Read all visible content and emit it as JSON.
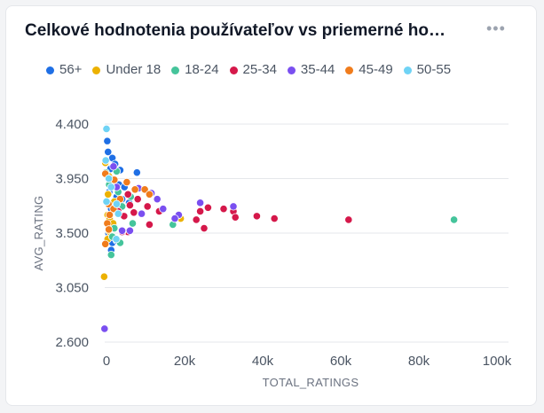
{
  "header": {
    "title": "Celkové hodnotenia používateľov vs priemerné ho…",
    "menu_icon": "more-horizontal-icon"
  },
  "chart_data": {
    "type": "scatter",
    "title": "Celkové hodnotenia používateľov vs priemerné ho…",
    "xlabel": "TOTAL_RATINGS",
    "ylabel": "AVG_RATING",
    "xlim": [
      0,
      100000
    ],
    "ylim": [
      2.6,
      4.4
    ],
    "x_ticks": [
      0,
      20000,
      40000,
      60000,
      80000,
      100000
    ],
    "x_tick_labels": [
      "0",
      "20k",
      "40k",
      "60k",
      "80k",
      "100k"
    ],
    "y_ticks": [
      2.6,
      3.05,
      3.5,
      3.95,
      4.4
    ],
    "y_tick_labels": [
      "2.600",
      "3.050",
      "3.500",
      "3.950",
      "4.400"
    ],
    "grid": true,
    "legend_position": "top",
    "series": [
      {
        "name": "56+",
        "color": "#1f6fe5",
        "points": [
          [
            200,
            4.26
          ],
          [
            400,
            4.17
          ],
          [
            1500,
            4.12
          ],
          [
            2200,
            4.07
          ],
          [
            1000,
            4.03
          ],
          [
            3500,
            4.02
          ],
          [
            7800,
            4.0
          ],
          [
            500,
            3.95
          ],
          [
            1800,
            3.92
          ],
          [
            3200,
            3.9
          ],
          [
            4600,
            3.88
          ],
          [
            700,
            3.84
          ],
          [
            2600,
            3.8
          ],
          [
            4000,
            3.78
          ],
          [
            5800,
            3.75
          ],
          [
            1200,
            3.7
          ],
          [
            3000,
            3.66
          ],
          [
            2000,
            3.55
          ],
          [
            500,
            3.5
          ],
          [
            1400,
            3.47
          ],
          [
            800,
            3.44
          ],
          [
            1500,
            3.42
          ],
          [
            2600,
            3.44
          ],
          [
            1200,
            3.36
          ]
        ]
      },
      {
        "name": "Under 18",
        "color": "#ecb100",
        "points": [
          [
            -300,
            4.08
          ],
          [
            600,
            3.97
          ],
          [
            1200,
            3.9
          ],
          [
            400,
            3.82
          ],
          [
            2000,
            3.76
          ],
          [
            3200,
            3.7
          ],
          [
            300,
            3.65
          ],
          [
            800,
            3.62
          ],
          [
            1700,
            3.58
          ],
          [
            600,
            3.52
          ],
          [
            1000,
            3.47
          ],
          [
            300,
            3.45
          ],
          [
            -600,
            3.14
          ],
          [
            19000,
            3.62
          ]
        ]
      },
      {
        "name": "18-24",
        "color": "#45c49b",
        "points": [
          [
            -200,
            4.0
          ],
          [
            2600,
            4.01
          ],
          [
            700,
            3.9
          ],
          [
            3000,
            3.84
          ],
          [
            6200,
            3.8
          ],
          [
            4000,
            3.72
          ],
          [
            9000,
            3.66
          ],
          [
            6700,
            3.58
          ],
          [
            2000,
            3.54
          ],
          [
            1500,
            3.47
          ],
          [
            3500,
            3.42
          ],
          [
            1200,
            3.32
          ],
          [
            17000,
            3.57
          ],
          [
            89000,
            3.61
          ]
        ]
      },
      {
        "name": "25-34",
        "color": "#d5184a",
        "points": [
          [
            5500,
            3.82
          ],
          [
            8000,
            3.78
          ],
          [
            6000,
            3.73
          ],
          [
            10500,
            3.72
          ],
          [
            13500,
            3.68
          ],
          [
            7000,
            3.67
          ],
          [
            4500,
            3.64
          ],
          [
            3000,
            3.68
          ],
          [
            11000,
            3.57
          ],
          [
            5500,
            3.51
          ],
          [
            4000,
            3.51
          ],
          [
            23000,
            3.61
          ],
          [
            24000,
            3.68
          ],
          [
            26000,
            3.71
          ],
          [
            30000,
            3.7
          ],
          [
            32500,
            3.68
          ],
          [
            33000,
            3.63
          ],
          [
            38500,
            3.64
          ],
          [
            43000,
            3.62
          ],
          [
            62000,
            3.61
          ],
          [
            25000,
            3.54
          ]
        ]
      },
      {
        "name": "35-44",
        "color": "#7a4ff0",
        "points": [
          [
            1800,
            4.05
          ],
          [
            2600,
            3.88
          ],
          [
            8200,
            3.87
          ],
          [
            11500,
            3.83
          ],
          [
            13000,
            3.78
          ],
          [
            24000,
            3.75
          ],
          [
            32500,
            3.72
          ],
          [
            14500,
            3.7
          ],
          [
            9000,
            3.66
          ],
          [
            18500,
            3.65
          ],
          [
            17500,
            3.62
          ],
          [
            6000,
            3.52
          ],
          [
            4000,
            3.52
          ],
          [
            -500,
            2.71
          ]
        ]
      },
      {
        "name": "45-49",
        "color": "#f07c1c",
        "points": [
          [
            -300,
            3.99
          ],
          [
            2000,
            3.94
          ],
          [
            5200,
            3.92
          ],
          [
            7300,
            3.86
          ],
          [
            9800,
            3.86
          ],
          [
            11000,
            3.82
          ],
          [
            3500,
            3.78
          ],
          [
            500,
            3.74
          ],
          [
            1800,
            3.7
          ],
          [
            800,
            3.65
          ],
          [
            200,
            3.58
          ],
          [
            -300,
            3.41
          ],
          [
            600,
            3.53
          ]
        ]
      },
      {
        "name": "50-55",
        "color": "#6fd3f5",
        "points": [
          [
            0,
            4.36
          ],
          [
            -200,
            4.1
          ],
          [
            600,
            3.95
          ],
          [
            1200,
            3.88
          ],
          [
            0,
            3.76
          ],
          [
            2600,
            3.74
          ],
          [
            3000,
            3.66
          ],
          [
            2500,
            3.45
          ]
        ]
      }
    ]
  }
}
